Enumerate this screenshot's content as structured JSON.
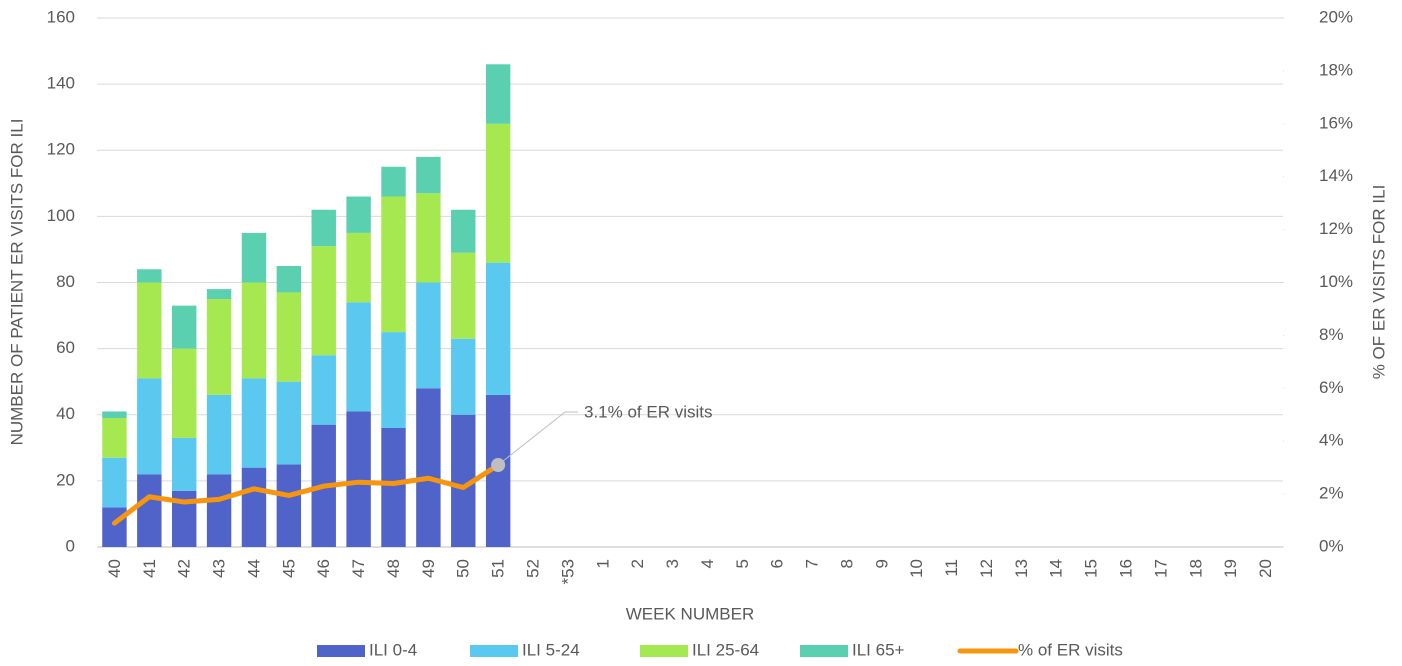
{
  "chart_data": {
    "type": "bar",
    "stacked": true,
    "categories": [
      "40",
      "41",
      "42",
      "43",
      "44",
      "45",
      "46",
      "47",
      "48",
      "49",
      "50",
      "51",
      "52",
      "*53",
      "1",
      "2",
      "3",
      "4",
      "5",
      "6",
      "7",
      "8",
      "9",
      "10",
      "11",
      "12",
      "13",
      "14",
      "15",
      "16",
      "17",
      "18",
      "19",
      "20"
    ],
    "series": [
      {
        "name": "ILI 0-4",
        "color": "#4f63c9",
        "values": [
          12,
          22,
          17,
          22,
          24,
          25,
          37,
          41,
          36,
          48,
          40,
          46,
          null,
          null,
          null,
          null,
          null,
          null,
          null,
          null,
          null,
          null,
          null,
          null,
          null,
          null,
          null,
          null,
          null,
          null,
          null,
          null,
          null,
          null
        ]
      },
      {
        "name": "ILI 5-24",
        "color": "#5bc8f0",
        "values": [
          15,
          29,
          16,
          24,
          27,
          25,
          21,
          33,
          29,
          32,
          23,
          40,
          null,
          null,
          null,
          null,
          null,
          null,
          null,
          null,
          null,
          null,
          null,
          null,
          null,
          null,
          null,
          null,
          null,
          null,
          null,
          null,
          null,
          null
        ]
      },
      {
        "name": "ILI 25-64",
        "color": "#a6e84f",
        "values": [
          12,
          29,
          27,
          29,
          29,
          27,
          33,
          21,
          41,
          27,
          26,
          42,
          null,
          null,
          null,
          null,
          null,
          null,
          null,
          null,
          null,
          null,
          null,
          null,
          null,
          null,
          null,
          null,
          null,
          null,
          null,
          null,
          null,
          null
        ]
      },
      {
        "name": "ILI 65+",
        "color": "#5ad0b0",
        "values": [
          2,
          4,
          13,
          3,
          15,
          8,
          11,
          11,
          9,
          11,
          13,
          18,
          null,
          null,
          null,
          null,
          null,
          null,
          null,
          null,
          null,
          null,
          null,
          null,
          null,
          null,
          null,
          null,
          null,
          null,
          null,
          null,
          null,
          null
        ]
      },
      {
        "name": "% of ER visits",
        "type": "line",
        "axis": "y2",
        "color": "#f7960e",
        "values": [
          0.9,
          1.9,
          1.7,
          1.8,
          2.2,
          1.95,
          2.3,
          2.45,
          2.4,
          2.6,
          2.25,
          3.1,
          null,
          null,
          null,
          null,
          null,
          null,
          null,
          null,
          null,
          null,
          null,
          null,
          null,
          null,
          null,
          null,
          null,
          null,
          null,
          null,
          null,
          null
        ]
      }
    ],
    "xlabel": "WEEK NUMBER",
    "ylabel": "NUMBER OF PATIENT ER VISITS FOR ILI",
    "y2label": "% OF ER VISITS FOR ILI",
    "ylim": [
      0,
      160
    ],
    "yticks": [
      0,
      20,
      40,
      60,
      80,
      100,
      120,
      140,
      160
    ],
    "y2lim": [
      0,
      20
    ],
    "y2ticks": [
      {
        "value": 0,
        "label": "0%"
      },
      {
        "value": 2,
        "label": "2%"
      },
      {
        "value": 4,
        "label": "4%"
      },
      {
        "value": 6,
        "label": "6%"
      },
      {
        "value": 8,
        "label": "8%"
      },
      {
        "value": 10,
        "label": "10%"
      },
      {
        "value": 12,
        "label": "12%"
      },
      {
        "value": 14,
        "label": "14%"
      },
      {
        "value": 16,
        "label": "16%"
      },
      {
        "value": 18,
        "label": "18%"
      },
      {
        "value": 20,
        "label": "20%"
      }
    ],
    "annotation": {
      "text": "3.1% of ER visits",
      "series": 4,
      "index": 11
    },
    "grid": true,
    "legend": "bottom"
  }
}
